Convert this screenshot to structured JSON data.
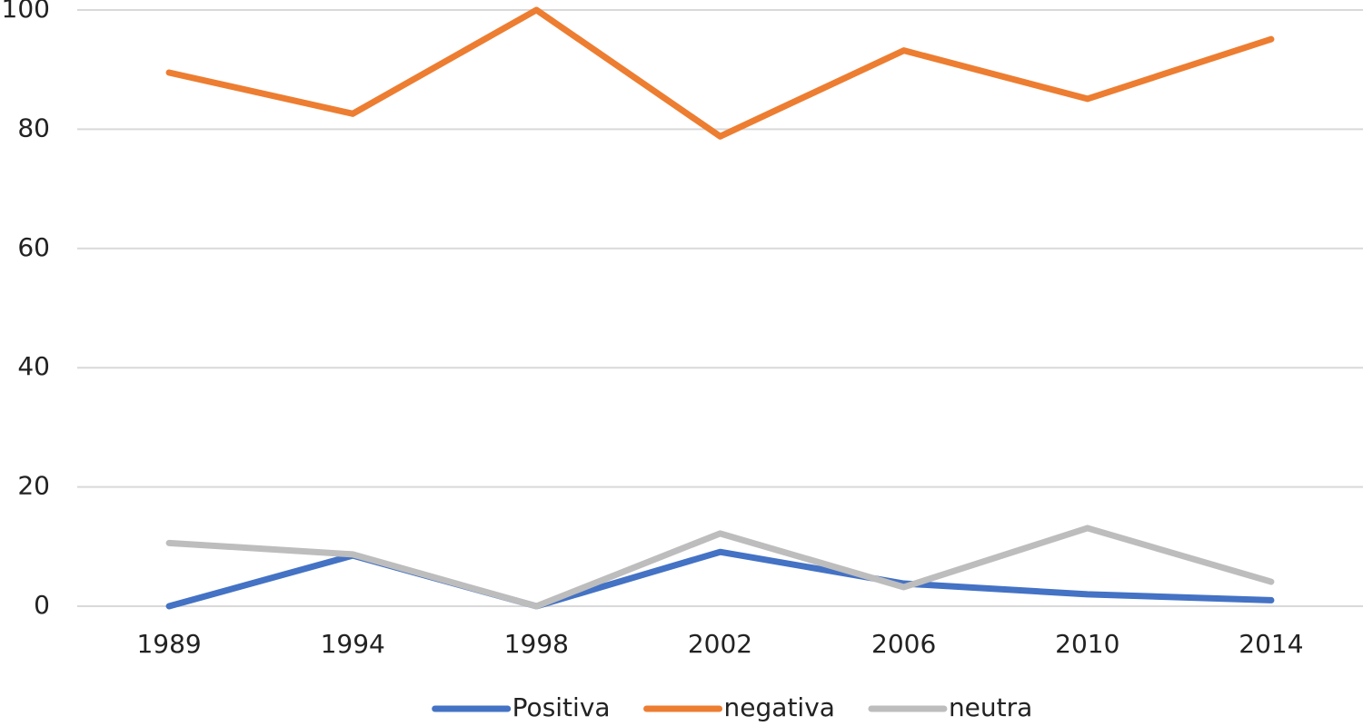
{
  "chart_data": {
    "type": "line",
    "categories": [
      "1989",
      "1994",
      "1998",
      "2002",
      "2006",
      "2010",
      "2014"
    ],
    "series": [
      {
        "name": "Positiva",
        "color": "#4472c4",
        "values": [
          0,
          8.5,
          0,
          9.1,
          3.8,
          2,
          1
        ]
      },
      {
        "name": "negativa",
        "color": "#ed7d31",
        "values": [
          89.5,
          82.6,
          100,
          78.8,
          93.2,
          85.1,
          95.1
        ]
      },
      {
        "name": "neutra",
        "color": "#bdbdbd",
        "values": [
          10.6,
          8.7,
          0,
          12.2,
          3.2,
          13.1,
          4.1
        ]
      }
    ],
    "ylim": [
      0,
      100
    ],
    "yticks": [
      0,
      20,
      40,
      60,
      80,
      100
    ],
    "grid": true,
    "legend": "bottom"
  }
}
